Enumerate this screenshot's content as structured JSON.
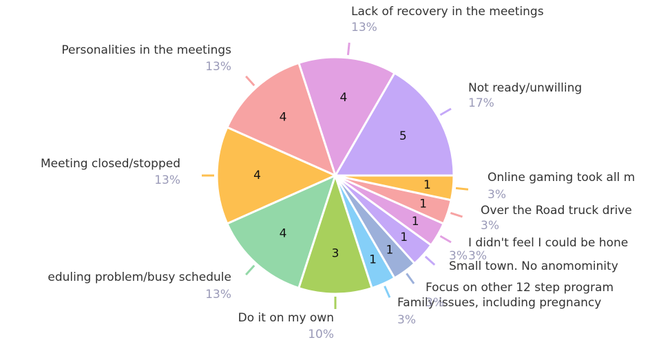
{
  "chart_data": {
    "type": "pie",
    "categories": [
      "Not ready/unwilling",
      "Lack of recovery in the meetings",
      "Personalities in the meetings",
      "Meeting closed/stopped",
      "eduling problem/busy schedule",
      "Do it on my own",
      "Family issues, including pregnancy",
      "Focus on other 12 step program",
      "Small town. No anomominity",
      "I didn't feel I could be hone",
      "Over the Road truck drive",
      "Online gaming took all m"
    ],
    "values": [
      5,
      4,
      4,
      4,
      4,
      3,
      1,
      1,
      1,
      1,
      1,
      1
    ],
    "percent_labels": [
      "17%",
      "13%",
      "13%",
      "13%",
      "13%",
      "10%",
      "3%",
      "3%",
      "3%",
      "3%",
      "3%",
      "3%"
    ],
    "colors": [
      "#c4a8f8",
      "#e2a0e2",
      "#f7a3a3",
      "#fdbf4f",
      "#93d8a8",
      "#a8d05c",
      "#85cff8",
      "#9cb0da",
      "#c4a8f8",
      "#e2a0e2",
      "#f7a3a3",
      "#fdbf4f"
    ]
  }
}
